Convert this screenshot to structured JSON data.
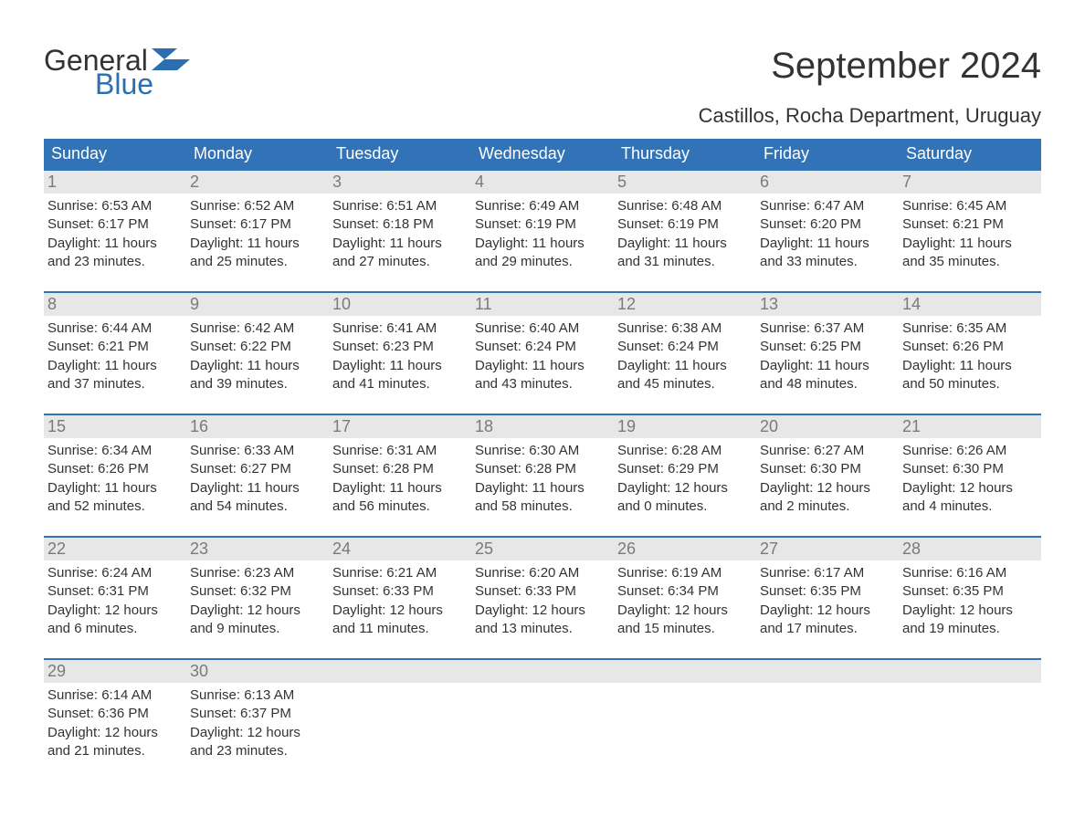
{
  "logo": {
    "word1": "General",
    "word2": "Blue",
    "flag_color": "#2c6fb0",
    "text_color_1": "#333333",
    "text_color_2": "#2c6fb0"
  },
  "header": {
    "title": "September 2024",
    "subtitle": "Castillos, Rocha Department, Uruguay"
  },
  "colors": {
    "header_bg": "#3173b6",
    "header_text": "#ffffff",
    "daynum_bg": "#e7e7e7",
    "daynum_text": "#7a7a7a",
    "body_text": "#333333",
    "week_border": "#3173b6",
    "page_bg": "#ffffff"
  },
  "typography": {
    "title_fontsize": 40,
    "subtitle_fontsize": 22,
    "dayheader_fontsize": 18,
    "daynum_fontsize": 18,
    "content_fontsize": 15,
    "font_family": "Arial"
  },
  "calendar": {
    "type": "table",
    "day_names": [
      "Sunday",
      "Monday",
      "Tuesday",
      "Wednesday",
      "Thursday",
      "Friday",
      "Saturday"
    ],
    "weeks": [
      {
        "days": [
          {
            "num": "1",
            "sunrise": "Sunrise: 6:53 AM",
            "sunset": "Sunset: 6:17 PM",
            "d1": "Daylight: 11 hours",
            "d2": "and 23 minutes."
          },
          {
            "num": "2",
            "sunrise": "Sunrise: 6:52 AM",
            "sunset": "Sunset: 6:17 PM",
            "d1": "Daylight: 11 hours",
            "d2": "and 25 minutes."
          },
          {
            "num": "3",
            "sunrise": "Sunrise: 6:51 AM",
            "sunset": "Sunset: 6:18 PM",
            "d1": "Daylight: 11 hours",
            "d2": "and 27 minutes."
          },
          {
            "num": "4",
            "sunrise": "Sunrise: 6:49 AM",
            "sunset": "Sunset: 6:19 PM",
            "d1": "Daylight: 11 hours",
            "d2": "and 29 minutes."
          },
          {
            "num": "5",
            "sunrise": "Sunrise: 6:48 AM",
            "sunset": "Sunset: 6:19 PM",
            "d1": "Daylight: 11 hours",
            "d2": "and 31 minutes."
          },
          {
            "num": "6",
            "sunrise": "Sunrise: 6:47 AM",
            "sunset": "Sunset: 6:20 PM",
            "d1": "Daylight: 11 hours",
            "d2": "and 33 minutes."
          },
          {
            "num": "7",
            "sunrise": "Sunrise: 6:45 AM",
            "sunset": "Sunset: 6:21 PM",
            "d1": "Daylight: 11 hours",
            "d2": "and 35 minutes."
          }
        ]
      },
      {
        "days": [
          {
            "num": "8",
            "sunrise": "Sunrise: 6:44 AM",
            "sunset": "Sunset: 6:21 PM",
            "d1": "Daylight: 11 hours",
            "d2": "and 37 minutes."
          },
          {
            "num": "9",
            "sunrise": "Sunrise: 6:42 AM",
            "sunset": "Sunset: 6:22 PM",
            "d1": "Daylight: 11 hours",
            "d2": "and 39 minutes."
          },
          {
            "num": "10",
            "sunrise": "Sunrise: 6:41 AM",
            "sunset": "Sunset: 6:23 PM",
            "d1": "Daylight: 11 hours",
            "d2": "and 41 minutes."
          },
          {
            "num": "11",
            "sunrise": "Sunrise: 6:40 AM",
            "sunset": "Sunset: 6:24 PM",
            "d1": "Daylight: 11 hours",
            "d2": "and 43 minutes."
          },
          {
            "num": "12",
            "sunrise": "Sunrise: 6:38 AM",
            "sunset": "Sunset: 6:24 PM",
            "d1": "Daylight: 11 hours",
            "d2": "and 45 minutes."
          },
          {
            "num": "13",
            "sunrise": "Sunrise: 6:37 AM",
            "sunset": "Sunset: 6:25 PM",
            "d1": "Daylight: 11 hours",
            "d2": "and 48 minutes."
          },
          {
            "num": "14",
            "sunrise": "Sunrise: 6:35 AM",
            "sunset": "Sunset: 6:26 PM",
            "d1": "Daylight: 11 hours",
            "d2": "and 50 minutes."
          }
        ]
      },
      {
        "days": [
          {
            "num": "15",
            "sunrise": "Sunrise: 6:34 AM",
            "sunset": "Sunset: 6:26 PM",
            "d1": "Daylight: 11 hours",
            "d2": "and 52 minutes."
          },
          {
            "num": "16",
            "sunrise": "Sunrise: 6:33 AM",
            "sunset": "Sunset: 6:27 PM",
            "d1": "Daylight: 11 hours",
            "d2": "and 54 minutes."
          },
          {
            "num": "17",
            "sunrise": "Sunrise: 6:31 AM",
            "sunset": "Sunset: 6:28 PM",
            "d1": "Daylight: 11 hours",
            "d2": "and 56 minutes."
          },
          {
            "num": "18",
            "sunrise": "Sunrise: 6:30 AM",
            "sunset": "Sunset: 6:28 PM",
            "d1": "Daylight: 11 hours",
            "d2": "and 58 minutes."
          },
          {
            "num": "19",
            "sunrise": "Sunrise: 6:28 AM",
            "sunset": "Sunset: 6:29 PM",
            "d1": "Daylight: 12 hours",
            "d2": "and 0 minutes."
          },
          {
            "num": "20",
            "sunrise": "Sunrise: 6:27 AM",
            "sunset": "Sunset: 6:30 PM",
            "d1": "Daylight: 12 hours",
            "d2": "and 2 minutes."
          },
          {
            "num": "21",
            "sunrise": "Sunrise: 6:26 AM",
            "sunset": "Sunset: 6:30 PM",
            "d1": "Daylight: 12 hours",
            "d2": "and 4 minutes."
          }
        ]
      },
      {
        "days": [
          {
            "num": "22",
            "sunrise": "Sunrise: 6:24 AM",
            "sunset": "Sunset: 6:31 PM",
            "d1": "Daylight: 12 hours",
            "d2": "and 6 minutes."
          },
          {
            "num": "23",
            "sunrise": "Sunrise: 6:23 AM",
            "sunset": "Sunset: 6:32 PM",
            "d1": "Daylight: 12 hours",
            "d2": "and 9 minutes."
          },
          {
            "num": "24",
            "sunrise": "Sunrise: 6:21 AM",
            "sunset": "Sunset: 6:33 PM",
            "d1": "Daylight: 12 hours",
            "d2": "and 11 minutes."
          },
          {
            "num": "25",
            "sunrise": "Sunrise: 6:20 AM",
            "sunset": "Sunset: 6:33 PM",
            "d1": "Daylight: 12 hours",
            "d2": "and 13 minutes."
          },
          {
            "num": "26",
            "sunrise": "Sunrise: 6:19 AM",
            "sunset": "Sunset: 6:34 PM",
            "d1": "Daylight: 12 hours",
            "d2": "and 15 minutes."
          },
          {
            "num": "27",
            "sunrise": "Sunrise: 6:17 AM",
            "sunset": "Sunset: 6:35 PM",
            "d1": "Daylight: 12 hours",
            "d2": "and 17 minutes."
          },
          {
            "num": "28",
            "sunrise": "Sunrise: 6:16 AM",
            "sunset": "Sunset: 6:35 PM",
            "d1": "Daylight: 12 hours",
            "d2": "and 19 minutes."
          }
        ]
      },
      {
        "days": [
          {
            "num": "29",
            "sunrise": "Sunrise: 6:14 AM",
            "sunset": "Sunset: 6:36 PM",
            "d1": "Daylight: 12 hours",
            "d2": "and 21 minutes."
          },
          {
            "num": "30",
            "sunrise": "Sunrise: 6:13 AM",
            "sunset": "Sunset: 6:37 PM",
            "d1": "Daylight: 12 hours",
            "d2": "and 23 minutes."
          },
          {
            "num": "",
            "sunrise": "",
            "sunset": "",
            "d1": "",
            "d2": ""
          },
          {
            "num": "",
            "sunrise": "",
            "sunset": "",
            "d1": "",
            "d2": ""
          },
          {
            "num": "",
            "sunrise": "",
            "sunset": "",
            "d1": "",
            "d2": ""
          },
          {
            "num": "",
            "sunrise": "",
            "sunset": "",
            "d1": "",
            "d2": ""
          },
          {
            "num": "",
            "sunrise": "",
            "sunset": "",
            "d1": "",
            "d2": ""
          }
        ]
      }
    ]
  }
}
